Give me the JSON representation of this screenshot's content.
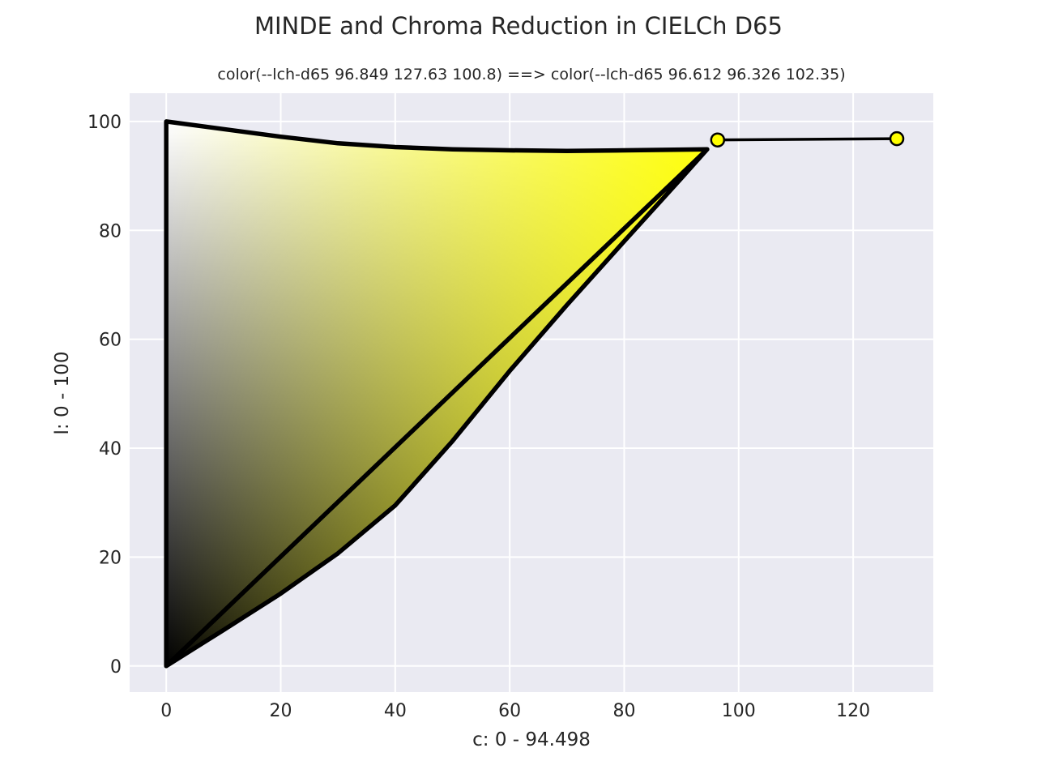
{
  "chart_data": {
    "type": "line",
    "title": "MINDE and Chroma Reduction in CIELCh D65",
    "subtitle": "color(--lch-d65 96.849 127.63 100.8) ==> color(--lch-d65 96.612 96.326 102.35)",
    "xlabel": "c: 0 - 94.498",
    "ylabel": "l: 0 - 100",
    "xlim": [
      -6.4,
      134.0
    ],
    "ylim": [
      -4.8,
      105.2
    ],
    "xticks": [
      0,
      20,
      40,
      60,
      80,
      100,
      120
    ],
    "yticks": [
      0,
      20,
      40,
      60,
      80,
      100
    ],
    "grid": true,
    "colors": {
      "background": "#eaeaf2",
      "grid": "#ffffff",
      "outline": "#000000",
      "point_fill": "#ffff00",
      "peak": "#ffff00",
      "black": "#000000",
      "white": "#ffffff"
    },
    "gamut_boundary": {
      "c": [
        0,
        94.498,
        90,
        80,
        70,
        60,
        50,
        40,
        30,
        20,
        10,
        0,
        0,
        10,
        20,
        30,
        40,
        50,
        60,
        70,
        80,
        94.498
      ],
      "l": [
        0,
        94.9,
        89.6,
        78.0,
        66.3,
        54.2,
        41.3,
        29.5,
        20.7,
        13.3,
        6.6,
        0,
        100,
        98.6,
        97.2,
        96.0,
        95.3,
        94.9,
        94.7,
        94.6,
        94.7,
        94.9
      ]
    },
    "reduction": {
      "c": [
        96.326,
        127.63
      ],
      "l": [
        96.612,
        96.849
      ]
    }
  }
}
